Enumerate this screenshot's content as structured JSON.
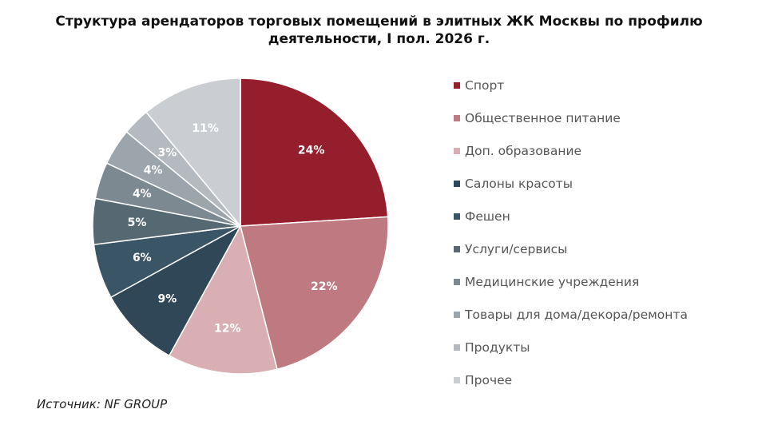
{
  "chart_data": {
    "type": "pie",
    "title": "Структура арендаторов торговых помещений в элитных ЖК Москвы по профилю деятельности, I пол. 2026 г.",
    "title_lines": [
      "Структура арендаторов торговых помещений в элитных ЖК Москвы по профилю",
      "деятельности, I пол. 2026 г."
    ],
    "start_angle_deg": 0,
    "direction": "clockwise",
    "legend_position": "right",
    "slices": [
      {
        "name": "Спорт",
        "value": 24,
        "label": "24%",
        "color": "#941E2B"
      },
      {
        "name": "Общественное питание",
        "value": 22,
        "label": "22%",
        "color": "#BE7A80"
      },
      {
        "name": "Доп. образование",
        "value": 12,
        "label": "12%",
        "color": "#D9AFB4"
      },
      {
        "name": "Салоны красоты",
        "value": 9,
        "label": "9%",
        "color": "#2F4756"
      },
      {
        "name": "Фешен",
        "value": 6,
        "label": "6%",
        "color": "#3A5565"
      },
      {
        "name": "Услуги/сервисы",
        "value": 5,
        "label": "5%",
        "color": "#566973"
      },
      {
        "name": "Медицинские учреждения",
        "value": 4,
        "label": "4%",
        "color": "#7C8990"
      },
      {
        "name": "Товары для дома/декора/ремонта",
        "value": 4,
        "label": "4%",
        "color": "#9CA5AB"
      },
      {
        "name": "Продукты",
        "value": 3,
        "label": "3%",
        "color": "#B4BABF"
      },
      {
        "name": "Прочее",
        "value": 11,
        "label": "11%",
        "color": "#CACED2"
      }
    ]
  },
  "source": "Источник: NF GROUP"
}
